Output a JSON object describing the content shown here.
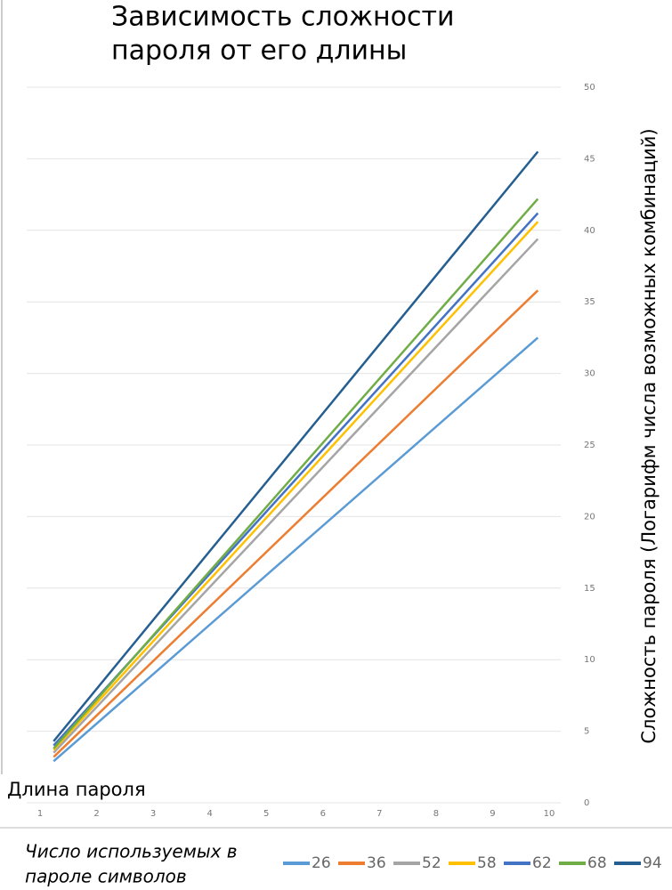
{
  "chart_data": {
    "type": "line",
    "title": [
      "Зависимость сложности",
      "пароля от его длины"
    ],
    "x_label": "Длина пароля",
    "y_label": "Сложность пароля (Логарифм числа возможных комбинаций)",
    "legend_title": [
      "Число используемых в",
      "пароле символов"
    ],
    "x": [
      1.24,
      9.8
    ],
    "xlim": [
      1,
      10
    ],
    "xticks": [
      1,
      2,
      3,
      4,
      5,
      6,
      7,
      8,
      9,
      10
    ],
    "ylim": [
      0,
      50
    ],
    "yticks": [
      0,
      5,
      10,
      15,
      20,
      25,
      30,
      35,
      40,
      45,
      50
    ],
    "grid": true,
    "y_axis_side": "right",
    "legend_position": "bottom",
    "series": [
      {
        "name": "26",
        "color": "#5b9bd5",
        "values": [
          2.9,
          32.5
        ]
      },
      {
        "name": "36",
        "color": "#ed7d31",
        "values": [
          3.2,
          35.8
        ]
      },
      {
        "name": "52",
        "color": "#a5a5a5",
        "values": [
          3.5,
          39.4
        ]
      },
      {
        "name": "58",
        "color": "#ffc000",
        "values": [
          3.7,
          40.6
        ]
      },
      {
        "name": "62",
        "color": "#4472c4",
        "values": [
          4.0,
          41.2
        ]
      },
      {
        "name": "68",
        "color": "#70ad47",
        "values": [
          3.8,
          42.2
        ]
      },
      {
        "name": "94",
        "color": "#255e91",
        "values": [
          4.3,
          45.5
        ]
      }
    ]
  }
}
